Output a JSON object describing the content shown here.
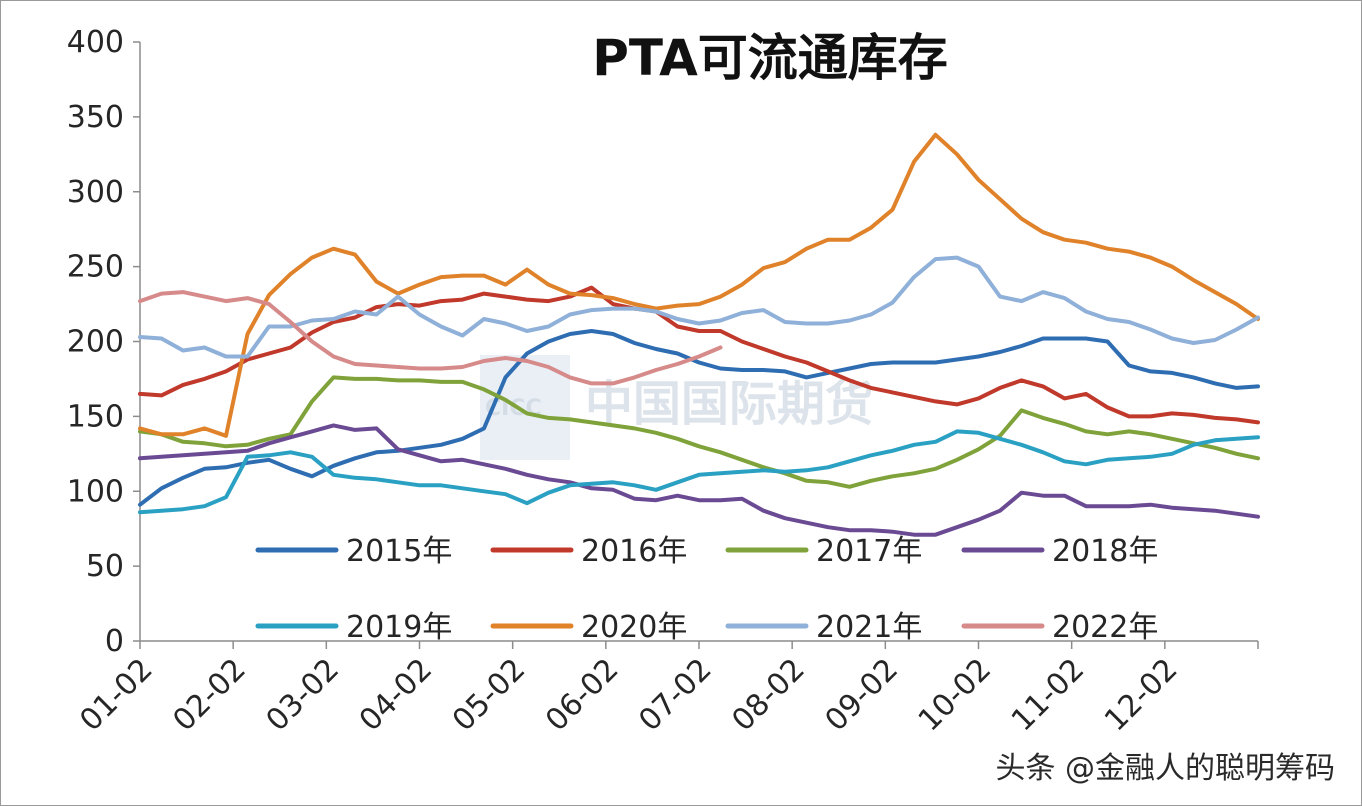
{
  "chart_data": {
    "type": "line",
    "title": "PTA可流通库存",
    "xlabel": "",
    "ylabel": "",
    "ylim": [
      0,
      400
    ],
    "y_ticks": [
      "0",
      "50",
      "100",
      "150",
      "200",
      "250",
      "300",
      "350",
      "400"
    ],
    "x_ticks": [
      "01-02",
      "02-02",
      "03-02",
      "04-02",
      "05-02",
      "06-02",
      "07-02",
      "08-02",
      "09-02",
      "10-02",
      "11-02",
      "12-02"
    ],
    "x_unit": "week of year (01-02 = 1)",
    "grid": false,
    "legend_position": "inside-bottom, 4 columns",
    "series": [
      {
        "name": "2015年",
        "color": "#2e6db2",
        "x": [
          1,
          2,
          3,
          4,
          5,
          6,
          7,
          8,
          9,
          10,
          11,
          12,
          13,
          14,
          15,
          16,
          17,
          18,
          19,
          20,
          21,
          22,
          23,
          24,
          25,
          26,
          27,
          28,
          29,
          30,
          31,
          32,
          33,
          34,
          35,
          36,
          37,
          38,
          39,
          40,
          41,
          42,
          43,
          44,
          45,
          46,
          47,
          48,
          49,
          50,
          51,
          52,
          53
        ],
        "y": [
          91,
          102,
          109,
          115,
          116,
          119,
          121,
          115,
          110,
          117,
          122,
          126,
          127,
          129,
          131,
          135,
          142,
          176,
          192,
          200,
          205,
          207,
          205,
          199,
          195,
          192,
          186,
          182,
          181,
          181,
          180,
          176,
          179,
          182,
          185,
          186,
          186,
          186,
          188,
          190,
          193,
          197,
          202,
          202,
          202,
          200,
          184,
          180,
          179,
          176,
          172,
          169,
          170
        ]
      },
      {
        "name": "2016年",
        "color": "#c0392b",
        "x": [
          1,
          2,
          3,
          4,
          5,
          6,
          7,
          8,
          9,
          10,
          11,
          12,
          13,
          14,
          15,
          16,
          17,
          18,
          19,
          20,
          21,
          22,
          23,
          24,
          25,
          26,
          27,
          28,
          29,
          30,
          31,
          32,
          33,
          34,
          35,
          36,
          37,
          38,
          39,
          40,
          41,
          42,
          43,
          44,
          45,
          46,
          47,
          48,
          49,
          50,
          51,
          52,
          53
        ],
        "y": [
          165,
          164,
          171,
          175,
          180,
          188,
          192,
          196,
          206,
          213,
          216,
          223,
          225,
          224,
          227,
          228,
          232,
          230,
          228,
          227,
          230,
          236,
          225,
          222,
          220,
          210,
          207,
          207,
          200,
          195,
          190,
          186,
          180,
          174,
          169,
          166,
          163,
          160,
          158,
          162,
          169,
          174,
          170,
          162,
          165,
          156,
          150,
          150,
          152,
          151,
          149,
          148,
          146
        ]
      },
      {
        "name": "2017年",
        "color": "#7fa33a",
        "x": [
          1,
          2,
          3,
          4,
          5,
          6,
          7,
          8,
          9,
          10,
          11,
          12,
          13,
          14,
          15,
          16,
          17,
          18,
          19,
          20,
          21,
          22,
          23,
          24,
          25,
          26,
          27,
          28,
          29,
          30,
          31,
          32,
          33,
          34,
          35,
          36,
          37,
          38,
          39,
          40,
          41,
          42,
          43,
          44,
          45,
          46,
          47,
          48,
          49,
          50,
          51,
          52,
          53
        ],
        "y": [
          140,
          138,
          133,
          132,
          130,
          131,
          135,
          138,
          160,
          176,
          175,
          175,
          174,
          174,
          173,
          173,
          168,
          161,
          152,
          149,
          148,
          146,
          144,
          142,
          139,
          135,
          130,
          126,
          121,
          116,
          112,
          107,
          106,
          103,
          107,
          110,
          112,
          115,
          121,
          128,
          137,
          154,
          149,
          145,
          140,
          138,
          140,
          138,
          135,
          132,
          129,
          125,
          122
        ]
      },
      {
        "name": "2018年",
        "color": "#6a4a93",
        "x": [
          1,
          2,
          3,
          4,
          5,
          6,
          7,
          8,
          9,
          10,
          11,
          12,
          13,
          14,
          15,
          16,
          17,
          18,
          19,
          20,
          21,
          22,
          23,
          24,
          25,
          26,
          27,
          28,
          29,
          30,
          31,
          32,
          33,
          34,
          35,
          36,
          37,
          38,
          39,
          40,
          41,
          42,
          43,
          44,
          45,
          46,
          47,
          48,
          49,
          50,
          51,
          52,
          53
        ],
        "y": [
          122,
          123,
          124,
          125,
          126,
          127,
          132,
          136,
          140,
          144,
          141,
          142,
          128,
          124,
          120,
          121,
          118,
          115,
          111,
          108,
          106,
          102,
          101,
          95,
          94,
          97,
          94,
          94,
          95,
          87,
          82,
          79,
          76,
          74,
          74,
          73,
          71,
          71,
          76,
          81,
          87,
          99,
          97,
          97,
          90,
          90,
          90,
          91,
          89,
          88,
          87,
          85,
          83
        ]
      },
      {
        "name": "2019年",
        "color": "#2aa1c3",
        "x": [
          1,
          2,
          3,
          4,
          5,
          6,
          7,
          8,
          9,
          10,
          11,
          12,
          13,
          14,
          15,
          16,
          17,
          18,
          19,
          20,
          21,
          22,
          23,
          24,
          25,
          26,
          27,
          28,
          29,
          30,
          31,
          32,
          33,
          34,
          35,
          36,
          37,
          38,
          39,
          40,
          41,
          42,
          43,
          44,
          45,
          46,
          47,
          48,
          49,
          50,
          51,
          52,
          53
        ],
        "y": [
          86,
          87,
          88,
          90,
          96,
          123,
          124,
          126,
          123,
          111,
          109,
          108,
          106,
          104,
          104,
          102,
          100,
          98,
          92,
          99,
          104,
          105,
          106,
          104,
          101,
          106,
          111,
          112,
          113,
          114,
          113,
          114,
          116,
          120,
          124,
          127,
          131,
          133,
          140,
          139,
          135,
          131,
          126,
          120,
          118,
          121,
          122,
          123,
          125,
          131,
          134,
          135,
          136
        ]
      },
      {
        "name": "2020年",
        "color": "#e0822a",
        "x": [
          1,
          2,
          3,
          4,
          5,
          6,
          7,
          8,
          9,
          10,
          11,
          12,
          13,
          14,
          15,
          16,
          17,
          18,
          19,
          20,
          21,
          22,
          23,
          24,
          25,
          26,
          27,
          28,
          29,
          30,
          31,
          32,
          33,
          34,
          35,
          36,
          37,
          38,
          39,
          40,
          41,
          42,
          43,
          44,
          45,
          46,
          47,
          48,
          49,
          50,
          51,
          52,
          53
        ],
        "y": [
          142,
          138,
          138,
          142,
          137,
          205,
          231,
          245,
          256,
          262,
          258,
          240,
          232,
          238,
          243,
          244,
          244,
          238,
          248,
          238,
          232,
          231,
          229,
          225,
          222,
          224,
          225,
          230,
          238,
          249,
          253,
          262,
          268,
          268,
          276,
          288,
          320,
          338,
          325,
          308,
          295,
          282,
          273,
          268,
          266,
          262,
          260,
          256,
          250,
          241,
          233,
          225,
          215
        ]
      },
      {
        "name": "2021年",
        "color": "#8fb0d8",
        "x": [
          1,
          2,
          3,
          4,
          5,
          6,
          7,
          8,
          9,
          10,
          11,
          12,
          13,
          14,
          15,
          16,
          17,
          18,
          19,
          20,
          21,
          22,
          23,
          24,
          25,
          26,
          27,
          28,
          29,
          30,
          31,
          32,
          33,
          34,
          35,
          36,
          37,
          38,
          39,
          40,
          41,
          42,
          43,
          44,
          45,
          46,
          47,
          48,
          49,
          50,
          51,
          52,
          53
        ],
        "y": [
          203,
          202,
          194,
          196,
          190,
          190,
          210,
          210,
          214,
          215,
          220,
          218,
          230,
          218,
          210,
          204,
          215,
          212,
          207,
          210,
          218,
          221,
          222,
          222,
          220,
          215,
          212,
          214,
          219,
          221,
          213,
          212,
          212,
          214,
          218,
          226,
          243,
          255,
          256,
          250,
          230,
          227,
          233,
          229,
          220,
          215,
          213,
          208,
          202,
          199,
          201,
          208,
          216
        ]
      },
      {
        "name": "2022年",
        "color": "#d68a8a",
        "x": [
          1,
          2,
          3,
          4,
          5,
          6,
          7,
          8,
          9,
          10,
          11,
          12,
          13,
          14,
          15,
          16,
          17,
          18,
          19,
          20,
          21,
          22,
          23,
          24,
          25,
          26,
          27,
          28
        ],
        "y": [
          227,
          232,
          233,
          230,
          227,
          229,
          225,
          213,
          200,
          190,
          185,
          184,
          183,
          182,
          182,
          183,
          187,
          189,
          187,
          183,
          176,
          172,
          172,
          176,
          181,
          185,
          190,
          196
        ]
      }
    ]
  },
  "watermark": {
    "text": "中国国际期货",
    "logo": "CICC"
  },
  "source": {
    "text": "头条 @金融人的聪明筹码"
  }
}
